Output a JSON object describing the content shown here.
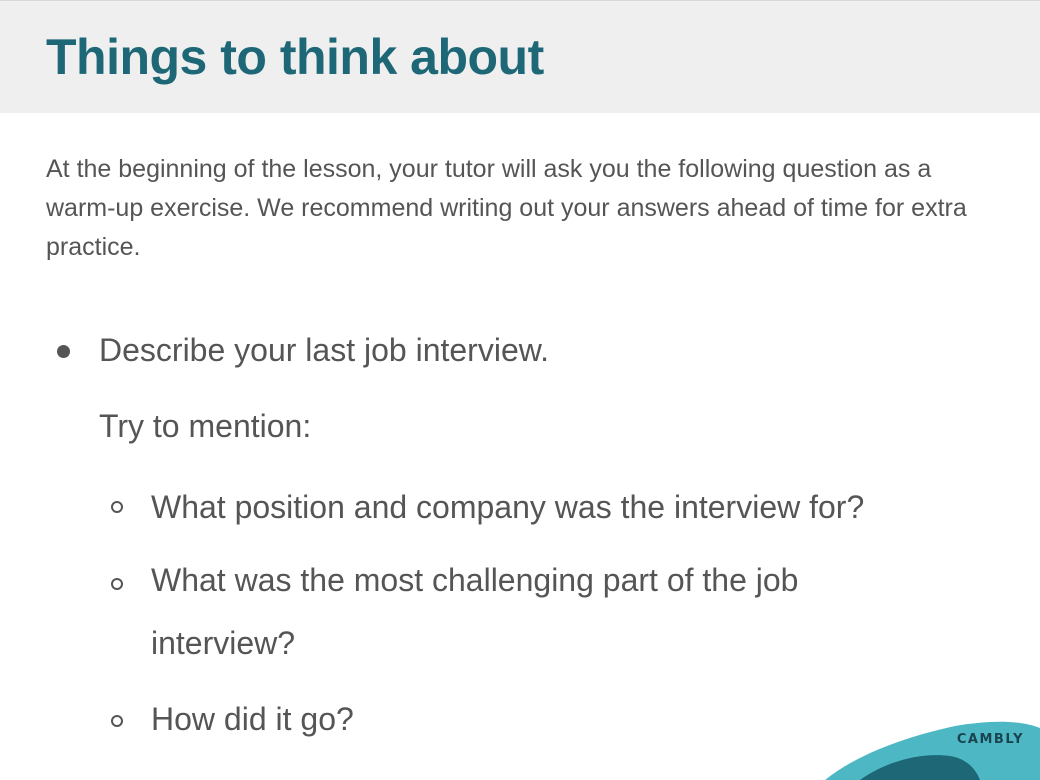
{
  "header": {
    "title": "Things to think about"
  },
  "intro": {
    "text": "At the beginning of the lesson, your tutor will ask you the following question as a warm-up exercise. We recommend writing out your answers ahead of time for extra practice."
  },
  "question": {
    "text": "Describe your last job interview.",
    "prompt": "Try to mention:",
    "points": [
      "What position and company was the interview for?",
      "What was the most challenging part of the job interview?",
      "How did it go?"
    ]
  },
  "brand": {
    "logo_text": "CAMBLY",
    "colors": {
      "title": "#1d6777",
      "wave_light": "#4db8c4",
      "wave_dark": "#1d6777"
    }
  }
}
